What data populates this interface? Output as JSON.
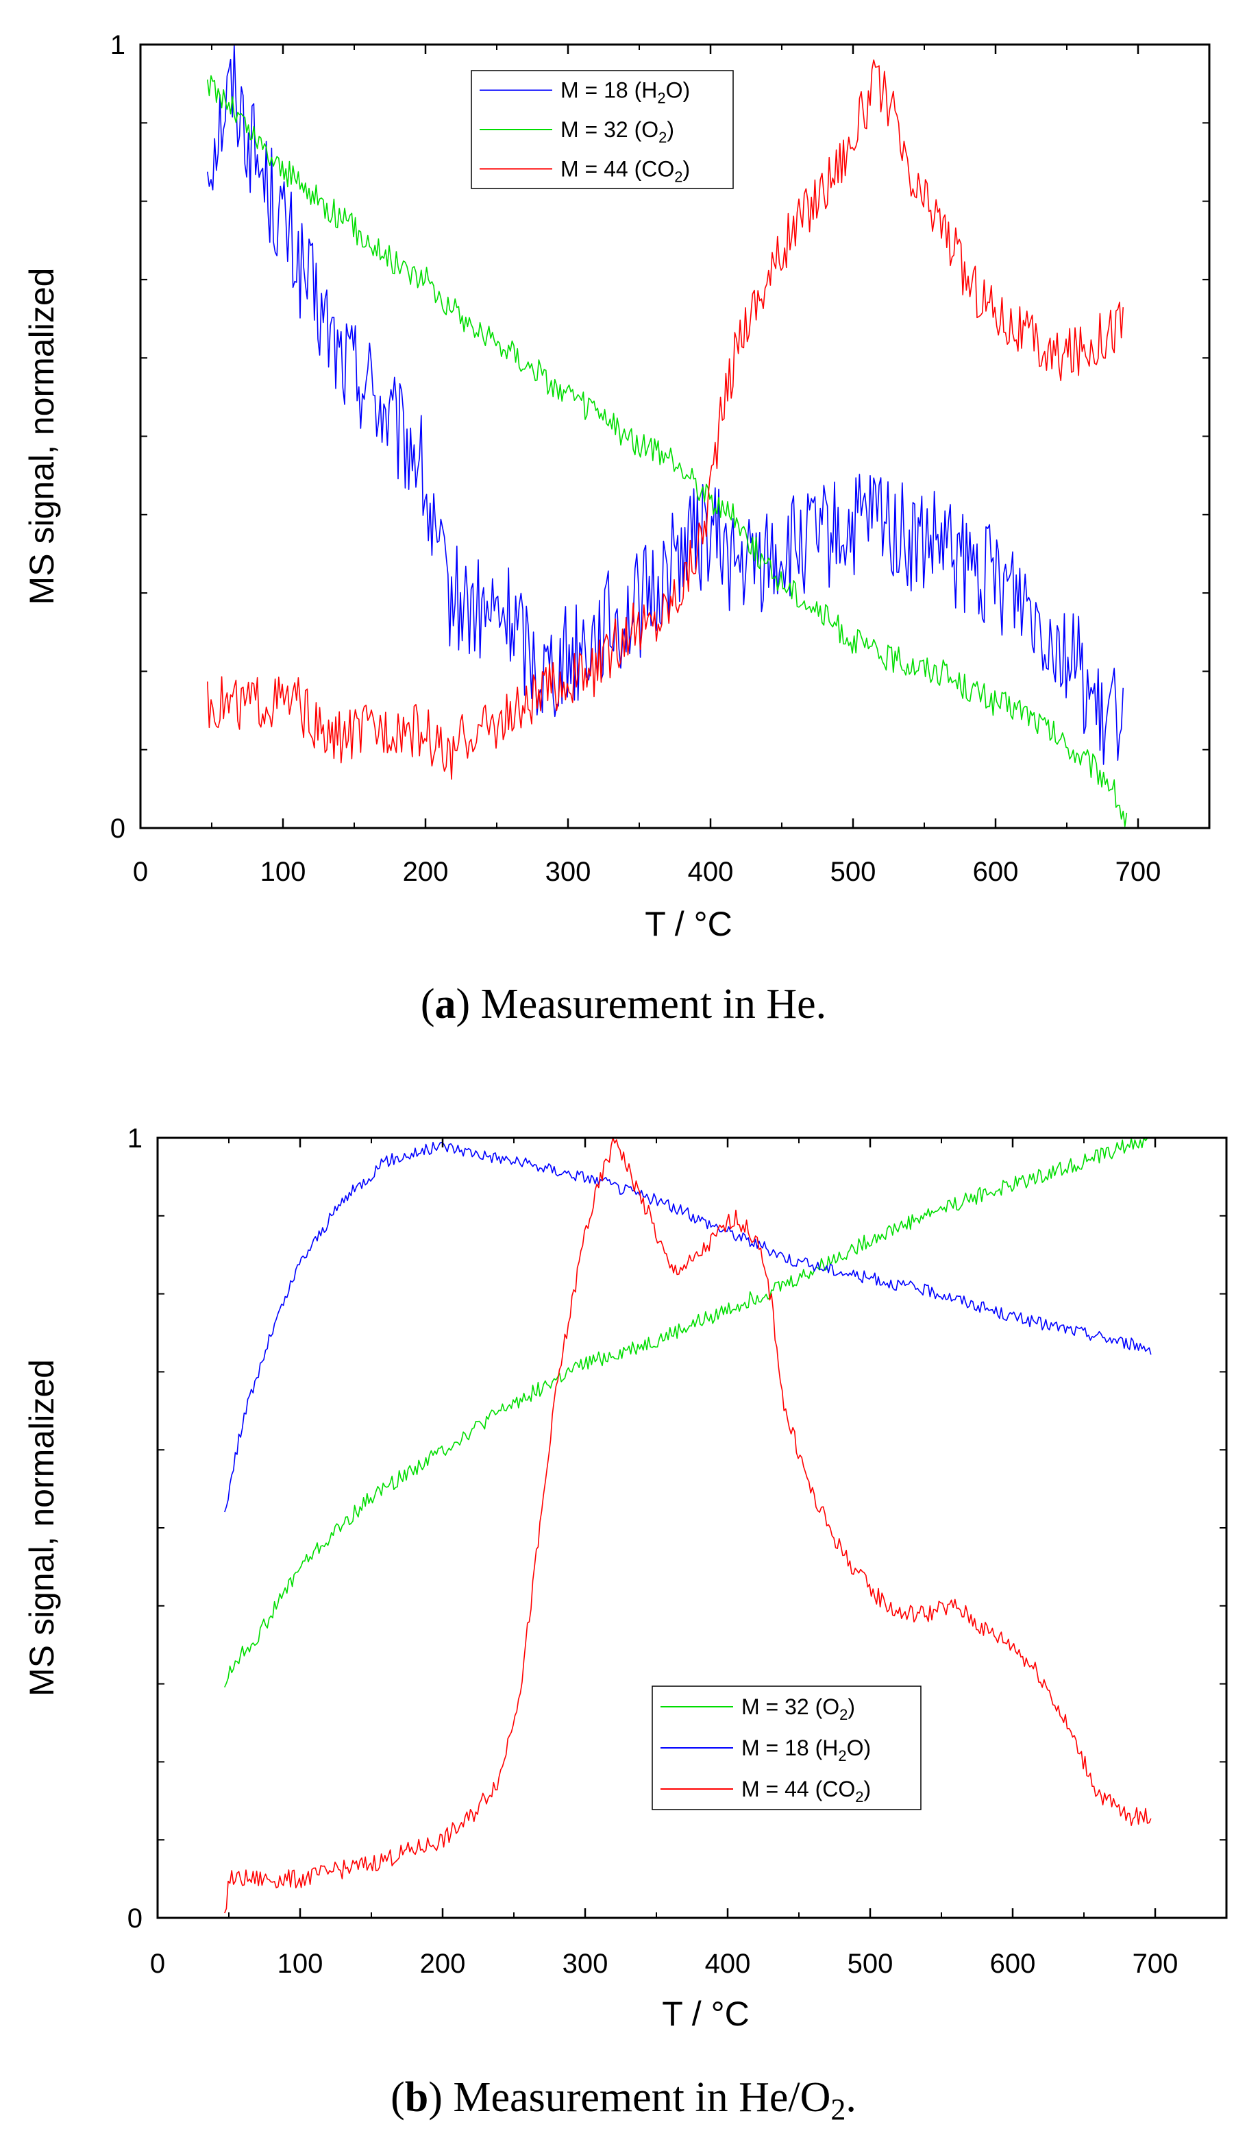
{
  "figure": {
    "panel_a": {
      "caption": {
        "label": "a",
        "text": ") Measurement in He.",
        "open": "("
      }
    },
    "panel_b": {
      "caption": {
        "label": "b",
        "text": ") Measurement in He/O",
        "sub": "2",
        "end": ".",
        "open": "("
      }
    }
  },
  "chart_data": [
    {
      "type": "line",
      "id": "a",
      "title": "",
      "xlabel": "T / °C",
      "ylabel": "MS signal, normalized",
      "xlim": [
        0,
        750
      ],
      "ylim": [
        0,
        1
      ],
      "xticks": [
        0,
        100,
        200,
        300,
        400,
        500,
        600,
        700
      ],
      "yticks": [
        0,
        1
      ],
      "legend_position": "top-center",
      "series": [
        {
          "name": "M = 18 (H2O)",
          "label": "M = 18 (H",
          "sub": "2",
          "label_end": "O)",
          "color": "#0000ff",
          "noise": 0.07,
          "points": [
            [
              47,
              0.85
            ],
            [
              55,
              0.9
            ],
            [
              65,
              0.95
            ],
            [
              80,
              0.86
            ],
            [
              100,
              0.77
            ],
            [
              120,
              0.68
            ],
            [
              140,
              0.6
            ],
            [
              160,
              0.57
            ],
            [
              180,
              0.5
            ],
            [
              195,
              0.48
            ],
            [
              205,
              0.37
            ],
            [
              215,
              0.3
            ],
            [
              240,
              0.27
            ],
            [
              260,
              0.27
            ],
            [
              280,
              0.2
            ],
            [
              300,
              0.22
            ],
            [
              320,
              0.25
            ],
            [
              340,
              0.27
            ],
            [
              360,
              0.3
            ],
            [
              380,
              0.36
            ],
            [
              400,
              0.38
            ],
            [
              420,
              0.33
            ],
            [
              450,
              0.35
            ],
            [
              480,
              0.37
            ],
            [
              500,
              0.38
            ],
            [
              520,
              0.4
            ],
            [
              540,
              0.36
            ],
            [
              560,
              0.36
            ],
            [
              580,
              0.33
            ],
            [
              600,
              0.32
            ],
            [
              620,
              0.3
            ],
            [
              640,
              0.25
            ],
            [
              660,
              0.2
            ],
            [
              675,
              0.12
            ],
            [
              690,
              0.17
            ]
          ]
        },
        {
          "name": "M = 32 (O2)",
          "label": "M = 32 (O",
          "sub": "2",
          "label_end": ")",
          "color": "#00dd00",
          "noise": 0.018,
          "points": [
            [
              47,
              0.95
            ],
            [
              60,
              0.93
            ],
            [
              80,
              0.88
            ],
            [
              100,
              0.84
            ],
            [
              120,
              0.81
            ],
            [
              140,
              0.78
            ],
            [
              160,
              0.75
            ],
            [
              180,
              0.72
            ],
            [
              200,
              0.7
            ],
            [
              220,
              0.66
            ],
            [
              240,
              0.63
            ],
            [
              260,
              0.61
            ],
            [
              280,
              0.58
            ],
            [
              300,
              0.55
            ],
            [
              320,
              0.53
            ],
            [
              340,
              0.5
            ],
            [
              360,
              0.48
            ],
            [
              380,
              0.46
            ],
            [
              400,
              0.42
            ],
            [
              420,
              0.39
            ],
            [
              440,
              0.33
            ],
            [
              460,
              0.3
            ],
            [
              480,
              0.27
            ],
            [
              500,
              0.24
            ],
            [
              520,
              0.22
            ],
            [
              540,
              0.21
            ],
            [
              560,
              0.2
            ],
            [
              580,
              0.18
            ],
            [
              600,
              0.16
            ],
            [
              620,
              0.15
            ],
            [
              640,
              0.12
            ],
            [
              660,
              0.09
            ],
            [
              680,
              0.06
            ],
            [
              693,
              0.0
            ]
          ]
        },
        {
          "name": "M = 44 (CO2)",
          "label": "M = 44 (CO",
          "sub": "2",
          "label_end": ")",
          "color": "#ff0000",
          "noise": 0.035,
          "points": [
            [
              47,
              0.16
            ],
            [
              80,
              0.16
            ],
            [
              110,
              0.16
            ],
            [
              130,
              0.11
            ],
            [
              150,
              0.12
            ],
            [
              180,
              0.13
            ],
            [
              200,
              0.12
            ],
            [
              215,
              0.09
            ],
            [
              230,
              0.12
            ],
            [
              260,
              0.14
            ],
            [
              290,
              0.18
            ],
            [
              320,
              0.2
            ],
            [
              340,
              0.25
            ],
            [
              360,
              0.26
            ],
            [
              380,
              0.31
            ],
            [
              395,
              0.38
            ],
            [
              405,
              0.5
            ],
            [
              420,
              0.63
            ],
            [
              440,
              0.7
            ],
            [
              460,
              0.77
            ],
            [
              480,
              0.82
            ],
            [
              500,
              0.88
            ],
            [
              515,
              0.95
            ],
            [
              525,
              0.93
            ],
            [
              540,
              0.82
            ],
            [
              560,
              0.78
            ],
            [
              580,
              0.7
            ],
            [
              600,
              0.66
            ],
            [
              620,
              0.63
            ],
            [
              640,
              0.6
            ],
            [
              660,
              0.61
            ],
            [
              690,
              0.65
            ]
          ]
        }
      ]
    },
    {
      "type": "line",
      "id": "b",
      "title": "",
      "xlabel": "T / °C",
      "ylabel": "MS signal, normalized",
      "xlim": [
        0,
        750
      ],
      "ylim": [
        0,
        1
      ],
      "xticks": [
        0,
        100,
        200,
        300,
        400,
        500,
        600,
        700
      ],
      "yticks": [
        0,
        1
      ],
      "legend_position": "bottom-center",
      "series": [
        {
          "name": "M = 32 (O2)",
          "label": "M = 32 (O",
          "sub": "2",
          "label_end": ")",
          "color": "#00dd00",
          "noise": 0.01,
          "points": [
            [
              47,
              0.3
            ],
            [
              55,
              0.33
            ],
            [
              70,
              0.36
            ],
            [
              100,
              0.45
            ],
            [
              150,
              0.54
            ],
            [
              200,
              0.6
            ],
            [
              250,
              0.66
            ],
            [
              300,
              0.71
            ],
            [
              350,
              0.74
            ],
            [
              400,
              0.78
            ],
            [
              450,
              0.82
            ],
            [
              500,
              0.87
            ],
            [
              550,
              0.91
            ],
            [
              600,
              0.94
            ],
            [
              650,
              0.97
            ],
            [
              697,
              1.0
            ]
          ]
        },
        {
          "name": "M = 18 (H2O)",
          "label": "M = 18 (H",
          "sub": "2",
          "label_end": "O)",
          "color": "#0000ff",
          "noise": 0.008,
          "points": [
            [
              47,
              0.52
            ],
            [
              60,
              0.64
            ],
            [
              80,
              0.75
            ],
            [
              100,
              0.84
            ],
            [
              130,
              0.92
            ],
            [
              160,
              0.97
            ],
            [
              200,
              0.99
            ],
            [
              250,
              0.97
            ],
            [
              300,
              0.95
            ],
            [
              350,
              0.92
            ],
            [
              400,
              0.88
            ],
            [
              450,
              0.84
            ],
            [
              500,
              0.82
            ],
            [
              550,
              0.8
            ],
            [
              600,
              0.77
            ],
            [
              650,
              0.75
            ],
            [
              697,
              0.73
            ]
          ]
        },
        {
          "name": "M = 44 (CO2)",
          "label": "M = 44 (CO",
          "sub": "2",
          "label_end": ")",
          "color": "#ff0000",
          "noise": 0.012,
          "points": [
            [
              47,
              0.0
            ],
            [
              50,
              0.05
            ],
            [
              100,
              0.05
            ],
            [
              150,
              0.07
            ],
            [
              200,
              0.1
            ],
            [
              220,
              0.13
            ],
            [
              240,
              0.18
            ],
            [
              255,
              0.3
            ],
            [
              265,
              0.45
            ],
            [
              280,
              0.68
            ],
            [
              300,
              0.88
            ],
            [
              315,
              0.97
            ],
            [
              322,
              1.0
            ],
            [
              330,
              0.96
            ],
            [
              345,
              0.9
            ],
            [
              360,
              0.83
            ],
            [
              375,
              0.84
            ],
            [
              390,
              0.87
            ],
            [
              405,
              0.9
            ],
            [
              420,
              0.87
            ],
            [
              430,
              0.8
            ],
            [
              440,
              0.65
            ],
            [
              460,
              0.54
            ],
            [
              480,
              0.47
            ],
            [
              500,
              0.42
            ],
            [
              520,
              0.39
            ],
            [
              540,
              0.39
            ],
            [
              560,
              0.4
            ],
            [
              580,
              0.37
            ],
            [
              600,
              0.35
            ],
            [
              620,
              0.31
            ],
            [
              640,
              0.24
            ],
            [
              660,
              0.16
            ],
            [
              680,
              0.13
            ],
            [
              697,
              0.13
            ]
          ]
        }
      ]
    }
  ]
}
